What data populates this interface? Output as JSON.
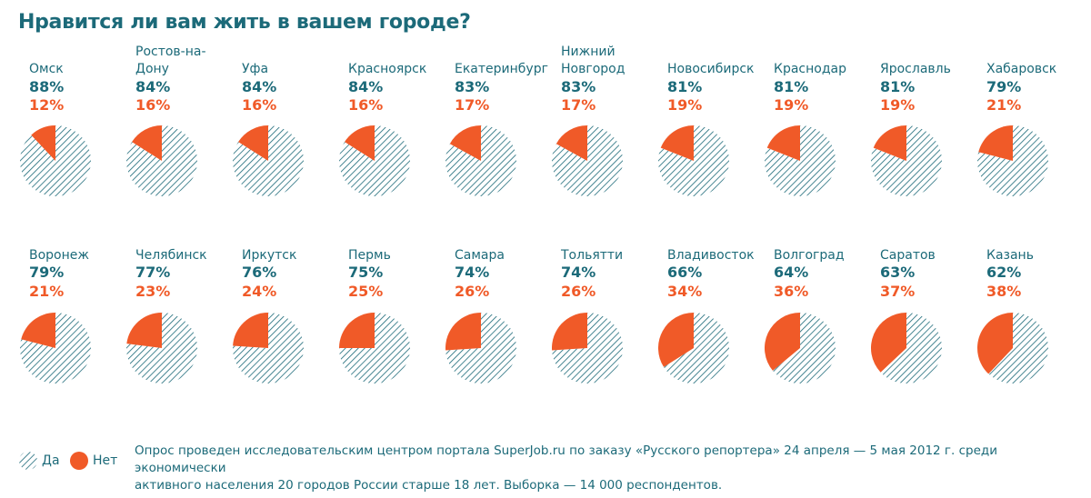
{
  "title": "Нравится ли вам жить в вашем городе?",
  "colors": {
    "yes": "#1c6a79",
    "no": "#f05a28"
  },
  "chart_data": {
    "type": "pie",
    "title": "Нравится ли вам жить в вашем городе?",
    "legend": {
      "yes_label": "Да",
      "no_label": "Нет",
      "placement": "bottom-left"
    },
    "cities": [
      {
        "name": "Омск",
        "yes": 88,
        "no": 12,
        "yes_label": "88%",
        "no_label": "12%"
      },
      {
        "name": "Ростов-на-Дону",
        "yes": 84,
        "no": 16,
        "yes_label": "84%",
        "no_label": "16%"
      },
      {
        "name": "Уфа",
        "yes": 84,
        "no": 16,
        "yes_label": "84%",
        "no_label": "16%"
      },
      {
        "name": "Красноярск",
        "yes": 84,
        "no": 16,
        "yes_label": "84%",
        "no_label": "16%"
      },
      {
        "name": "Екатеринбург",
        "yes": 83,
        "no": 17,
        "yes_label": "83%",
        "no_label": "17%"
      },
      {
        "name": "Нижний Новгород",
        "yes": 83,
        "no": 17,
        "yes_label": "83%",
        "no_label": "17%"
      },
      {
        "name": "Новосибирск",
        "yes": 81,
        "no": 19,
        "yes_label": "81%",
        "no_label": "19%"
      },
      {
        "name": "Краснодар",
        "yes": 81,
        "no": 19,
        "yes_label": "81%",
        "no_label": "19%"
      },
      {
        "name": "Ярославль",
        "yes": 81,
        "no": 19,
        "yes_label": "81%",
        "no_label": "19%"
      },
      {
        "name": "Хабаровск",
        "yes": 79,
        "no": 21,
        "yes_label": "79%",
        "no_label": "21%"
      },
      {
        "name": "Воронеж",
        "yes": 79,
        "no": 21,
        "yes_label": "79%",
        "no_label": "21%"
      },
      {
        "name": "Челябинск",
        "yes": 77,
        "no": 23,
        "yes_label": "77%",
        "no_label": "23%"
      },
      {
        "name": "Иркутск",
        "yes": 76,
        "no": 24,
        "yes_label": "76%",
        "no_label": "24%"
      },
      {
        "name": "Пермь",
        "yes": 75,
        "no": 25,
        "yes_label": "75%",
        "no_label": "25%"
      },
      {
        "name": "Самара",
        "yes": 74,
        "no": 26,
        "yes_label": "74%",
        "no_label": "26%"
      },
      {
        "name": "Тольятти",
        "yes": 74,
        "no": 26,
        "yes_label": "74%",
        "no_label": "26%"
      },
      {
        "name": "Владивосток",
        "yes": 66,
        "no": 34,
        "yes_label": "66%",
        "no_label": "34%"
      },
      {
        "name": "Волгоград",
        "yes": 64,
        "no": 36,
        "yes_label": "64%",
        "no_label": "36%"
      },
      {
        "name": "Саратов",
        "yes": 63,
        "no": 37,
        "yes_label": "63%",
        "no_label": "37%"
      },
      {
        "name": "Казань",
        "yes": 62,
        "no": 38,
        "yes_label": "62%",
        "no_label": "38%"
      }
    ]
  },
  "footnote": {
    "line1": "Опрос проведен исследовательским центром портала SuperJob.ru по заказу «Русского репортера» 24 апреля — 5 мая 2012 г. среди экономически",
    "line2": "активного населения 20 городов России старше 18 лет. Выборка — 14 000 респондентов."
  }
}
